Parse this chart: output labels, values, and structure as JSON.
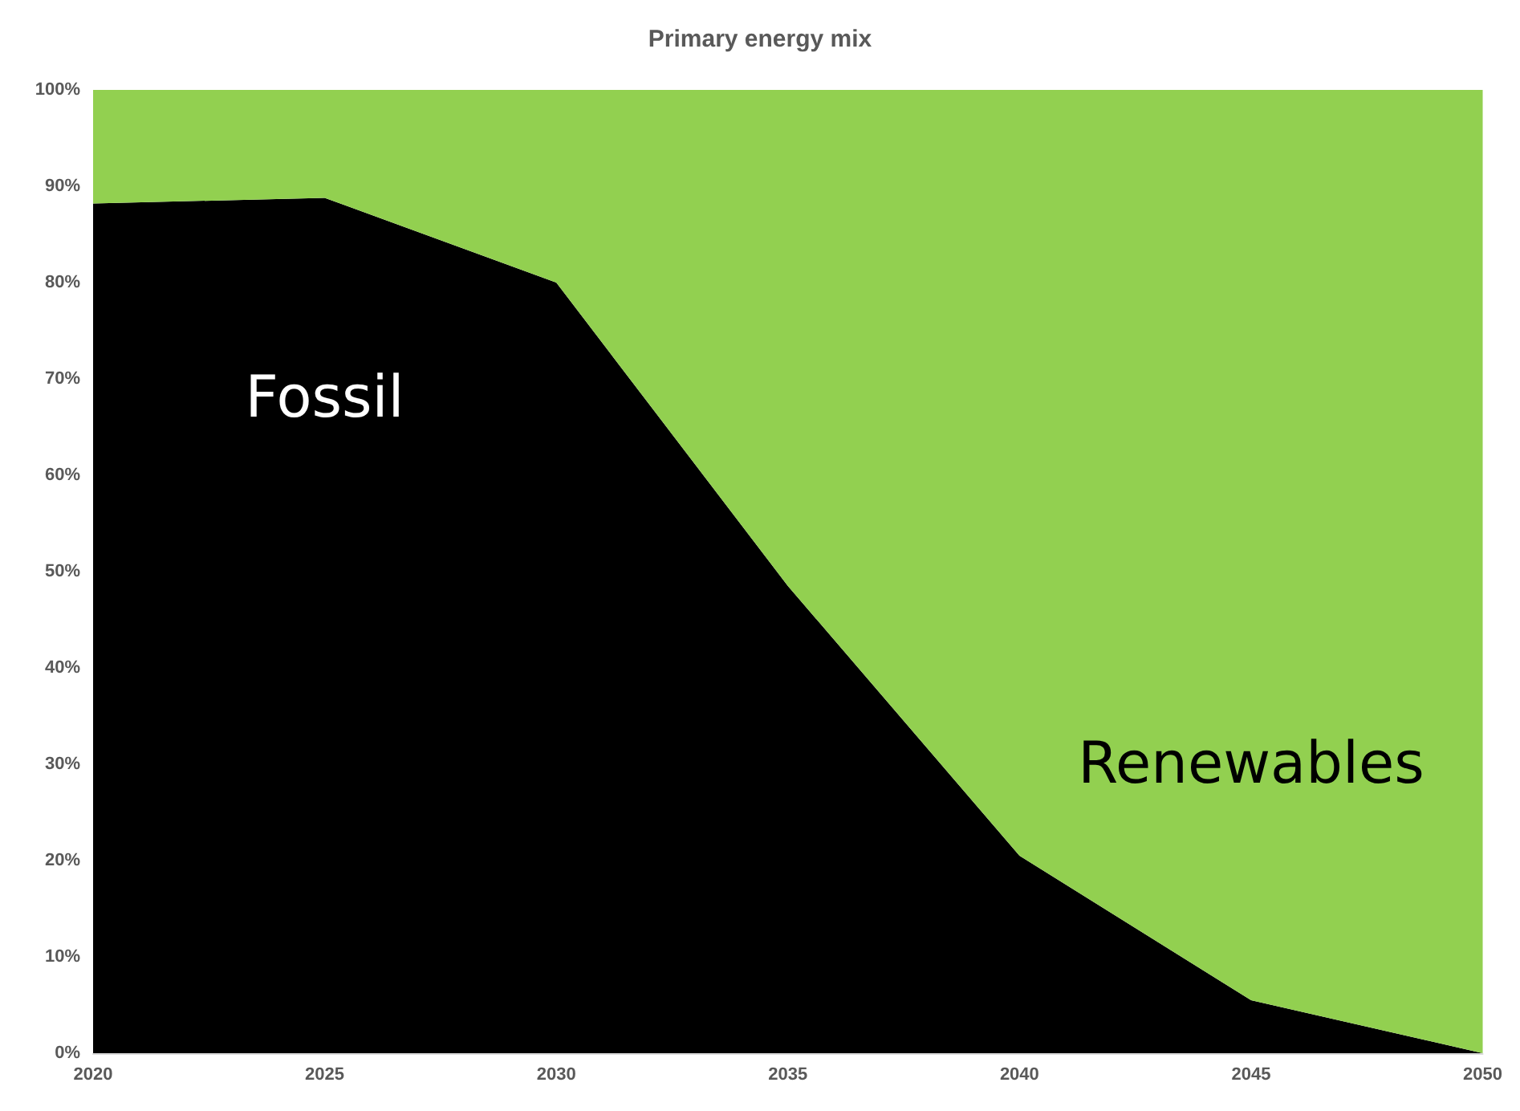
{
  "chart_data": {
    "type": "area",
    "title": "Primary energy mix",
    "stacked": true,
    "categories": [
      "2020",
      "2025",
      "2030",
      "2035",
      "2040",
      "2045",
      "2050"
    ],
    "ylim": [
      0,
      100
    ],
    "yticks": [
      {
        "value": 0,
        "label": "0%"
      },
      {
        "value": 10,
        "label": "10%"
      },
      {
        "value": 20,
        "label": "20%"
      },
      {
        "value": 30,
        "label": "30%"
      },
      {
        "value": 40,
        "label": "40%"
      },
      {
        "value": 50,
        "label": "50%"
      },
      {
        "value": 60,
        "label": "60%"
      },
      {
        "value": 70,
        "label": "70%"
      },
      {
        "value": 80,
        "label": "80%"
      },
      {
        "value": 90,
        "label": "90%"
      },
      {
        "value": 100,
        "label": "100%"
      }
    ],
    "series": [
      {
        "name": "Fossil",
        "color": "#000000",
        "values": [
          88.2,
          88.8,
          80,
          48.5,
          20.5,
          5.5,
          0
        ]
      },
      {
        "name": "Renewables",
        "color": "#92d050",
        "values": [
          11.8,
          11.2,
          20,
          51.5,
          79.5,
          94.5,
          100
        ]
      }
    ]
  }
}
